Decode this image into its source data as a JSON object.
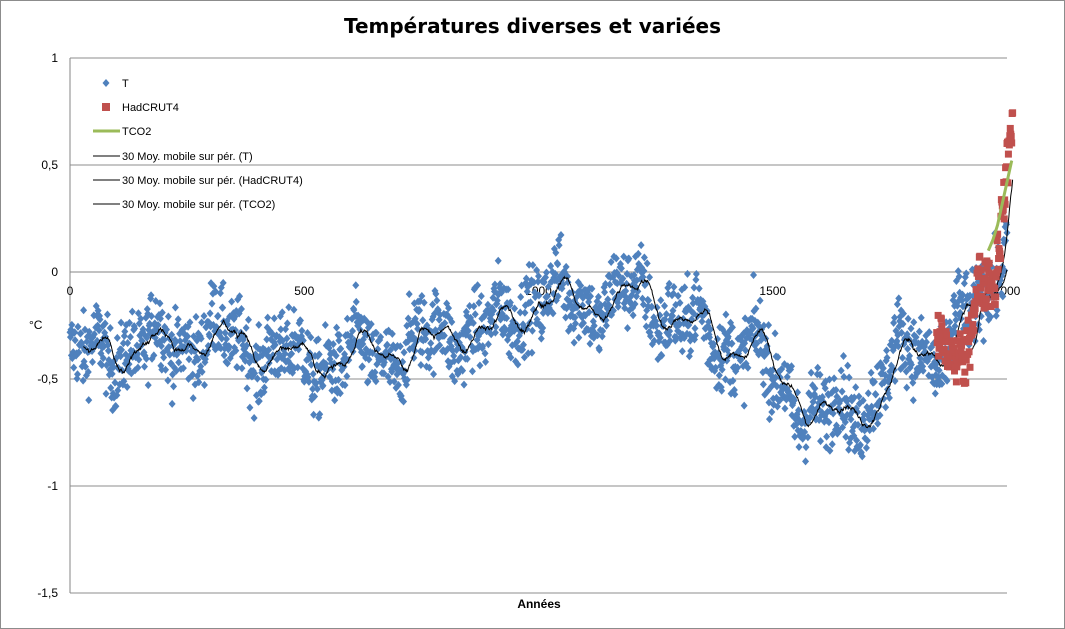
{
  "chart_data": {
    "type": "scatter",
    "title": "Températures diverses et variées",
    "xlabel": "Années",
    "ylabel": "°C",
    "xlim": [
      0,
      2000
    ],
    "ylim": [
      -1.5,
      1
    ],
    "x_ticks": [
      "0",
      "500",
      "1000",
      "1500",
      "2000"
    ],
    "y_ticks": [
      "1",
      "0,5",
      "0",
      "-0,5",
      "-1",
      "-1,5"
    ],
    "y_tick_values": [
      1,
      0.5,
      0,
      -0.5,
      -1,
      -1.5
    ],
    "x_tick_values": [
      0,
      500,
      1000,
      1500,
      2000
    ],
    "grid": "horizontal",
    "legend_position": "top-left",
    "colors": {
      "T": "#4f81bd",
      "HadCRUT4": "#c0504d",
      "TCO2": "#9bbb59",
      "moving_average": "#000000"
    },
    "series": [
      {
        "name": "T",
        "kind": "scatter",
        "marker": "diamond",
        "note_source": "one point per year, 0–2000",
        "profile_x": [
          0,
          100,
          200,
          300,
          400,
          500,
          600,
          700,
          800,
          900,
          1000,
          1100,
          1200,
          1300,
          1400,
          1450,
          1500,
          1600,
          1700,
          1750,
          1800,
          1850,
          1900,
          1950,
          2000
        ],
        "profile_y": [
          -0.42,
          -0.36,
          -0.34,
          -0.3,
          -0.36,
          -0.42,
          -0.4,
          -0.38,
          -0.28,
          -0.28,
          -0.1,
          -0.15,
          -0.1,
          -0.22,
          -0.35,
          -0.32,
          -0.5,
          -0.68,
          -0.62,
          -0.45,
          -0.35,
          -0.4,
          -0.25,
          -0.15,
          0.2
        ],
        "spread": 0.17
      },
      {
        "name": "HadCRUT4",
        "kind": "scatter",
        "marker": "square",
        "x": [
          1850,
          1855,
          1860,
          1865,
          1870,
          1875,
          1880,
          1885,
          1890,
          1895,
          1900,
          1905,
          1910,
          1915,
          1920,
          1925,
          1930,
          1935,
          1940,
          1945,
          1950,
          1955,
          1960,
          1965,
          1970,
          1975,
          1980,
          1985,
          1990,
          1995,
          2000,
          2005,
          2010,
          2012
        ],
        "y": [
          -0.3,
          -0.35,
          -0.25,
          -0.4,
          -0.3,
          -0.45,
          -0.35,
          -0.4,
          -0.45,
          -0.4,
          -0.3,
          -0.45,
          -0.5,
          -0.35,
          -0.3,
          -0.25,
          -0.15,
          -0.1,
          0.0,
          -0.05,
          -0.1,
          -0.05,
          0.0,
          -0.05,
          -0.05,
          -0.1,
          0.1,
          0.15,
          0.3,
          0.35,
          0.5,
          0.6,
          0.7,
          0.75
        ]
      },
      {
        "name": "TCO2",
        "kind": "line",
        "x": [
          1960,
          1970,
          1980,
          1990,
          2000,
          2010
        ],
        "y": [
          0.1,
          0.15,
          0.22,
          0.32,
          0.42,
          0.52
        ]
      },
      {
        "name": "30 Moy. mobile sur pér. (T)",
        "kind": "line"
      },
      {
        "name": "30 Moy. mobile sur pér. (HadCRUT4)",
        "kind": "line"
      },
      {
        "name": "30 Moy. mobile sur pér. (TCO2)",
        "kind": "line"
      }
    ]
  }
}
